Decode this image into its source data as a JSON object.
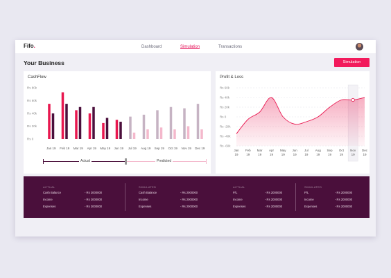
{
  "header": {
    "logo": "Fifo",
    "logo_dot": ".",
    "nav": [
      {
        "label": "Dashboard"
      },
      {
        "label": "Simulation"
      },
      {
        "label": "Transactions"
      }
    ]
  },
  "page": {
    "title": "Your Business",
    "simulation_button": "Simulation"
  },
  "cashflow": {
    "title": "CashFlow",
    "legend_actual": "Actual",
    "legend_predicted": "Predicted"
  },
  "pnl": {
    "title": "Profit & Loss"
  },
  "chart_data": [
    {
      "type": "bar",
      "title": "CashFlow",
      "categories": [
        "Jan 19",
        "Feb 19",
        "Mar 19",
        "Apr 19",
        "May 19",
        "Jun 19",
        "Jul 19",
        "Aug 19",
        "Sep 19",
        "Oct 19",
        "Nov 19",
        "Dec 19"
      ],
      "y_tick_labels": [
        "Rs 80k",
        "Rs 60k",
        "Rs 40k",
        "Rs 20k",
        "Rs 0"
      ],
      "ylim": [
        0,
        80
      ],
      "series": [
        {
          "values": [
            55,
            73,
            45,
            40,
            25,
            30,
            35,
            38,
            45,
            50,
            48,
            55
          ]
        },
        {
          "values": [
            40,
            55,
            50,
            50,
            33,
            27,
            10,
            15,
            18,
            15,
            20,
            15
          ]
        }
      ],
      "actual_months": 6,
      "colors": {
        "actual_a": "#e8174f",
        "actual_b": "#4b0f3c",
        "pred_a": "#c6b3c3",
        "pred_b": "#f4b8cc"
      }
    },
    {
      "type": "area",
      "title": "Profit & Loss",
      "categories": [
        "Jan 19",
        "Feb 19",
        "Mar 19",
        "Apr 19",
        "May 19",
        "Jun 19",
        "Jul 19",
        "Aug 19",
        "Sep 19",
        "Oct 19",
        "Nov 19",
        "Dec 19"
      ],
      "y_tick_labels": [
        "Rs 60k",
        "Rs 40k",
        "Rs 20k",
        "Rs 0",
        "Rs -20k",
        "Rs -40k",
        "Rs -60k"
      ],
      "ylim": [
        -60,
        60
      ],
      "values": [
        -35,
        -5,
        10,
        40,
        0,
        -15,
        -10,
        0,
        20,
        35,
        35,
        40
      ],
      "highlight_index": 10,
      "color": "#e8174f"
    }
  ],
  "summary": [
    {
      "heading": "ACTUAL",
      "rows": [
        {
          "label": "Cash Balance",
          "value": "- Rs 2000000"
        },
        {
          "label": "Income",
          "value": "- Rs 2000000"
        },
        {
          "label": "Expenses",
          "value": "- Rs 2000000"
        }
      ]
    },
    {
      "heading": "SIMULATED",
      "rows": [
        {
          "label": "Cash Balance",
          "value": "- Rs 2000000"
        },
        {
          "label": "Income",
          "value": "- Rs 2000000"
        },
        {
          "label": "Expenses",
          "value": "- Rs 2000000"
        }
      ]
    },
    {
      "heading": "ACTUAL",
      "rows": [
        {
          "label": "P/L",
          "value": "- Rs 2000000"
        },
        {
          "label": "Income",
          "value": "- Rs 2000000"
        },
        {
          "label": "Expenses",
          "value": "- Rs 2000000"
        }
      ]
    },
    {
      "heading": "SIMULATED",
      "rows": [
        {
          "label": "P/L",
          "value": "- Rs 2000000"
        },
        {
          "label": "Income",
          "value": "- Rs 2000000"
        },
        {
          "label": "Expenses",
          "value": "- Rs 2000000"
        }
      ]
    }
  ]
}
